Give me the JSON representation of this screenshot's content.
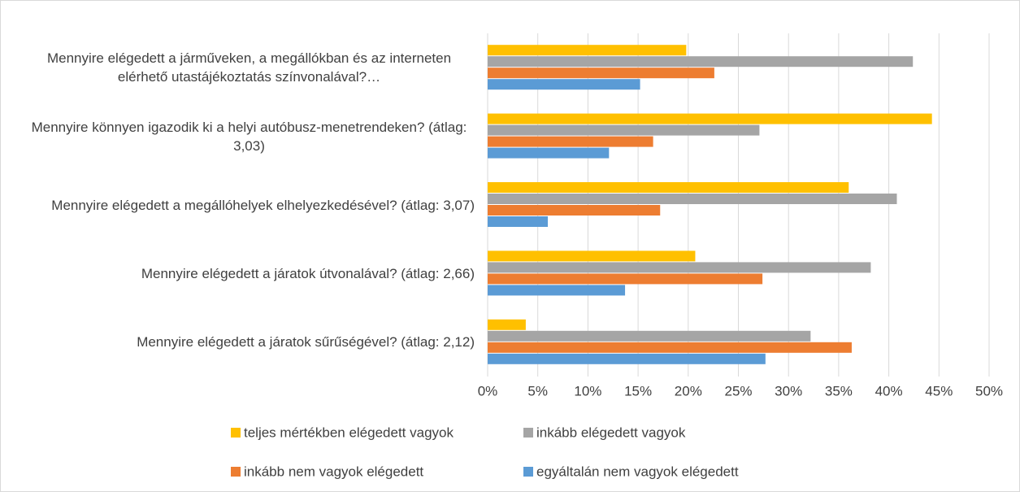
{
  "chart_data": {
    "type": "bar",
    "orientation": "horizontal",
    "categories": [
      "Mennyire elégedett a járműveken, a megállókban és az interneten elérhető utastájékoztatás színvonalával?…",
      "Mennyire könnyen igazodik ki a helyi autóbusz-menetrendeken? (átlag: 3,03)",
      "Mennyire elégedett a megállóhelyek elhelyezkedésével? (átlag: 3,07)",
      "Mennyire elégedett a járatok útvonalával? (átlag: 2,66)",
      "Mennyire elégedett a járatok sűrűségével? (átlag: 2,12)"
    ],
    "series": [
      {
        "name": "teljes mértékben elégedett vagyok",
        "color": "#ffc000",
        "values": [
          19.8,
          44.3,
          36.0,
          20.7,
          3.8
        ]
      },
      {
        "name": "inkább elégedett vagyok",
        "color": "#a5a5a5",
        "values": [
          42.4,
          27.1,
          40.8,
          38.2,
          32.2
        ]
      },
      {
        "name": "inkább nem vagyok elégedett",
        "color": "#ed7d31",
        "values": [
          22.6,
          16.5,
          17.2,
          27.4,
          36.3
        ]
      },
      {
        "name": "egyáltalán nem vagyok elégedett",
        "color": "#5b9bd5",
        "values": [
          15.2,
          12.1,
          6.0,
          13.7,
          27.7
        ]
      }
    ],
    "xlim": [
      0,
      50
    ],
    "xticks": [
      {
        "value": 0,
        "label": "0%"
      },
      {
        "value": 5,
        "label": "5%"
      },
      {
        "value": 10,
        "label": "10%"
      },
      {
        "value": 15,
        "label": "15%"
      },
      {
        "value": 20,
        "label": "20%"
      },
      {
        "value": 25,
        "label": "25%"
      },
      {
        "value": 30,
        "label": "30%"
      },
      {
        "value": 35,
        "label": "35%"
      },
      {
        "value": 40,
        "label": "40%"
      },
      {
        "value": 45,
        "label": "45%"
      },
      {
        "value": 50,
        "label": "50%"
      }
    ],
    "grid": true,
    "legend": "bottom"
  }
}
